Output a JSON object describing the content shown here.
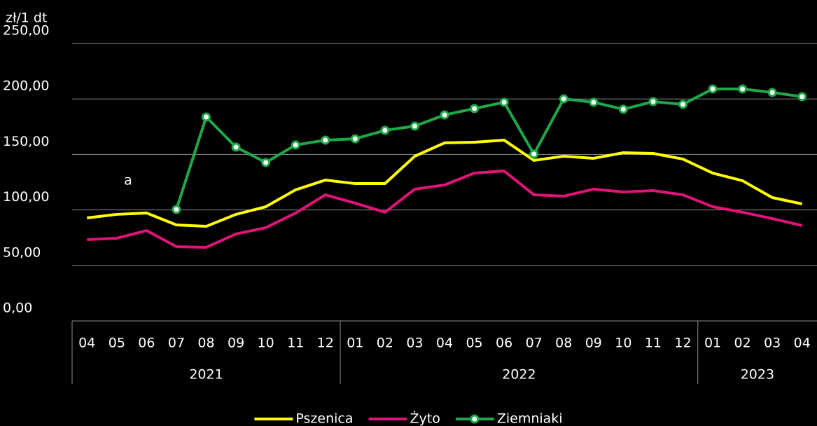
{
  "chart_data": {
    "type": "line",
    "y_label": "zł/1 dt",
    "annotation": "a",
    "groups": [
      {
        "label": "2021",
        "categories": [
          "04",
          "05",
          "06",
          "07",
          "08",
          "09",
          "10",
          "11",
          "12"
        ]
      },
      {
        "label": "2022",
        "categories": [
          "01",
          "02",
          "03",
          "04",
          "05",
          "06",
          "07",
          "08",
          "09",
          "10",
          "11",
          "12"
        ]
      },
      {
        "label": "2023",
        "categories": [
          "01",
          "02",
          "03",
          "04"
        ]
      }
    ],
    "series": [
      {
        "name": "Pszenica",
        "color": "#ffff00",
        "marker": false,
        "values": [
          92.8,
          96.0,
          97.2,
          86.5,
          85.2,
          96.0,
          102.9,
          118.1,
          126.9,
          123.7,
          123.7,
          148.4,
          160.4,
          161.0,
          162.9,
          144.6,
          148.4,
          146.5,
          151.5,
          150.9,
          145.8,
          133.2,
          126.3,
          111.1,
          105.4
        ]
      },
      {
        "name": "Żyto",
        "color": "#e0137a",
        "marker": false,
        "values": [
          73.2,
          74.5,
          81.4,
          66.9,
          66.3,
          78.3,
          84.0,
          97.2,
          113.6,
          106.1,
          97.9,
          118.7,
          122.5,
          133.2,
          135.1,
          113.6,
          112.4,
          118.7,
          116.2,
          117.4,
          113.6,
          102.9,
          97.9,
          92.2,
          85.9
        ]
      },
      {
        "name": "Ziemniaki",
        "color": "#1fa84a",
        "marker": true,
        "values": [
          null,
          null,
          null,
          100.4,
          183.7,
          156.6,
          142.7,
          158.5,
          162.9,
          164.1,
          171.7,
          175.5,
          185.6,
          191.3,
          197.0,
          150.3,
          200.1,
          197.0,
          190.7,
          197.6,
          195.1,
          209.0,
          209.0,
          205.8,
          202.0
        ]
      }
    ],
    "ylim": [
      0,
      250
    ],
    "yticks": [
      {
        "value": 0,
        "label": "0,00"
      },
      {
        "value": 50,
        "label": "50,00"
      },
      {
        "value": 100,
        "label": "100,00"
      },
      {
        "value": 150,
        "label": "150,00"
      },
      {
        "value": 200,
        "label": "200,00"
      },
      {
        "value": 250,
        "label": "250,00"
      }
    ],
    "grid": true,
    "legend": "bottom"
  }
}
